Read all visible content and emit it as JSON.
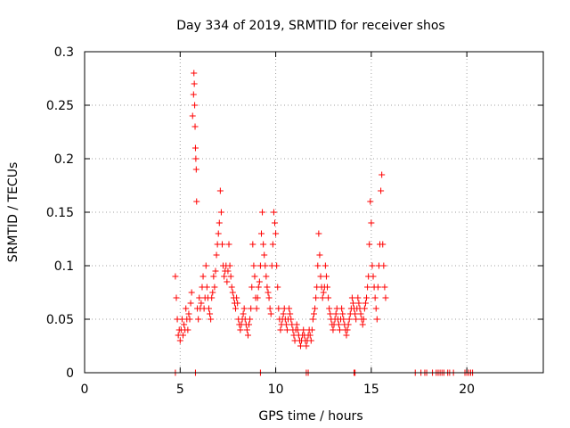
{
  "chart_data": {
    "type": "scatter",
    "title": "Day 334 of 2019, SRMTID for receiver shos",
    "xlabel": "GPS time / hours",
    "ylabel": "SRMTID / TECUs",
    "xlim": [
      0,
      24
    ],
    "ylim": [
      0,
      0.3
    ],
    "xticks": [
      0,
      5,
      10,
      15,
      20
    ],
    "xtick_labels": [
      "0",
      "5",
      "10",
      "15",
      "20"
    ],
    "yticks": [
      0,
      0.05,
      0.1,
      0.15,
      0.2,
      0.25,
      0.3
    ],
    "ytick_labels": [
      "0",
      "0.05",
      "0.1",
      "0.15",
      "0.2",
      "0.25",
      "0.3"
    ],
    "grid": true,
    "marker": "+",
    "color": "#ff0000",
    "series": [
      {
        "name": "SRMTID",
        "x": [
          4.75,
          4.8,
          4.85,
          4.9,
          4.95,
          5.0,
          5.05,
          5.1,
          5.15,
          5.2,
          5.25,
          5.3,
          5.35,
          5.4,
          5.45,
          5.5,
          5.55,
          5.6,
          5.65,
          5.7,
          5.72,
          5.74,
          5.76,
          5.78,
          5.8,
          5.82,
          5.84,
          5.86,
          5.9,
          5.95,
          6.0,
          6.05,
          6.1,
          6.15,
          6.2,
          6.25,
          6.3,
          6.35,
          6.4,
          6.45,
          6.5,
          6.55,
          6.6,
          6.65,
          6.7,
          6.75,
          6.8,
          6.85,
          6.9,
          6.95,
          7.0,
          7.05,
          7.1,
          7.15,
          7.2,
          7.25,
          7.3,
          7.35,
          7.4,
          7.45,
          7.5,
          7.55,
          7.6,
          7.65,
          7.7,
          7.75,
          7.8,
          7.85,
          7.9,
          7.95,
          8.0,
          8.05,
          8.1,
          8.15,
          8.2,
          8.25,
          8.3,
          8.35,
          8.4,
          8.45,
          8.5,
          8.55,
          8.6,
          8.65,
          8.7,
          8.75,
          8.8,
          8.85,
          8.9,
          8.95,
          9.0,
          9.05,
          9.1,
          9.15,
          9.2,
          9.25,
          9.3,
          9.35,
          9.4,
          9.45,
          9.5,
          9.55,
          9.6,
          9.65,
          9.7,
          9.75,
          9.8,
          9.85,
          9.9,
          9.95,
          10.0,
          10.05,
          10.1,
          10.15,
          10.2,
          10.25,
          10.3,
          10.35,
          10.4,
          10.45,
          10.5,
          10.55,
          10.6,
          10.65,
          10.7,
          10.75,
          10.8,
          10.85,
          10.9,
          10.95,
          11.0,
          11.05,
          11.1,
          11.15,
          11.2,
          11.25,
          11.3,
          11.35,
          11.4,
          11.45,
          11.5,
          11.55,
          11.6,
          11.65,
          11.7,
          11.75,
          11.8,
          11.85,
          11.9,
          11.95,
          12.0,
          12.05,
          12.1,
          12.15,
          12.2,
          12.25,
          12.3,
          12.35,
          12.4,
          12.45,
          12.5,
          12.55,
          12.6,
          12.65,
          12.7,
          12.75,
          12.8,
          12.85,
          12.9,
          12.95,
          13.0,
          13.05,
          13.1,
          13.15,
          13.2,
          13.25,
          13.3,
          13.35,
          13.4,
          13.45,
          13.5,
          13.55,
          13.6,
          13.65,
          13.7,
          13.75,
          13.8,
          13.85,
          13.9,
          13.95,
          14.0,
          14.05,
          14.1,
          14.15,
          14.2,
          14.25,
          14.3,
          14.35,
          14.4,
          14.45,
          14.5,
          14.55,
          14.6,
          14.65,
          14.7,
          14.75,
          14.8,
          14.85,
          14.9,
          14.95,
          15.0,
          15.05,
          15.1,
          15.15,
          15.2,
          15.25,
          15.3,
          15.35,
          15.4,
          15.45,
          15.5,
          15.55,
          15.6,
          15.65,
          15.7,
          15.75,
          4.75,
          5.8,
          9.2,
          11.6,
          11.7,
          14.1,
          14.15,
          17.3,
          17.6,
          17.8,
          17.9,
          18.2,
          18.4,
          18.5,
          18.6,
          18.7,
          18.8,
          19.0,
          19.1,
          19.3,
          19.9,
          20.0,
          20.1,
          20.2,
          20.3
        ],
        "y": [
          0.09,
          0.07,
          0.05,
          0.035,
          0.04,
          0.03,
          0.04,
          0.05,
          0.035,
          0.045,
          0.04,
          0.06,
          0.05,
          0.04,
          0.055,
          0.05,
          0.065,
          0.075,
          0.24,
          0.26,
          0.28,
          0.27,
          0.25,
          0.23,
          0.21,
          0.2,
          0.19,
          0.16,
          0.06,
          0.05,
          0.07,
          0.06,
          0.065,
          0.08,
          0.09,
          0.06,
          0.07,
          0.1,
          0.08,
          0.07,
          0.06,
          0.055,
          0.05,
          0.07,
          0.075,
          0.09,
          0.08,
          0.095,
          0.11,
          0.12,
          0.13,
          0.14,
          0.17,
          0.15,
          0.12,
          0.1,
          0.09,
          0.095,
          0.1,
          0.085,
          0.095,
          0.12,
          0.1,
          0.09,
          0.08,
          0.075,
          0.07,
          0.065,
          0.06,
          0.07,
          0.065,
          0.05,
          0.045,
          0.04,
          0.045,
          0.05,
          0.055,
          0.06,
          0.05,
          0.045,
          0.04,
          0.035,
          0.045,
          0.05,
          0.06,
          0.08,
          0.12,
          0.1,
          0.09,
          0.07,
          0.06,
          0.07,
          0.08,
          0.085,
          0.1,
          0.13,
          0.15,
          0.12,
          0.11,
          0.1,
          0.09,
          0.08,
          0.075,
          0.07,
          0.06,
          0.055,
          0.1,
          0.12,
          0.15,
          0.14,
          0.13,
          0.1,
          0.08,
          0.06,
          0.05,
          0.04,
          0.045,
          0.05,
          0.055,
          0.06,
          0.05,
          0.045,
          0.04,
          0.05,
          0.06,
          0.055,
          0.05,
          0.045,
          0.04,
          0.035,
          0.03,
          0.04,
          0.045,
          0.04,
          0.035,
          0.03,
          0.025,
          0.03,
          0.035,
          0.04,
          0.035,
          0.03,
          0.025,
          0.03,
          0.035,
          0.04,
          0.035,
          0.03,
          0.04,
          0.05,
          0.055,
          0.06,
          0.07,
          0.08,
          0.1,
          0.13,
          0.11,
          0.09,
          0.08,
          0.07,
          0.075,
          0.08,
          0.1,
          0.09,
          0.08,
          0.07,
          0.06,
          0.055,
          0.05,
          0.045,
          0.04,
          0.045,
          0.05,
          0.055,
          0.06,
          0.05,
          0.045,
          0.04,
          0.05,
          0.06,
          0.055,
          0.05,
          0.045,
          0.04,
          0.035,
          0.04,
          0.045,
          0.05,
          0.055,
          0.06,
          0.07,
          0.065,
          0.06,
          0.055,
          0.05,
          0.06,
          0.07,
          0.065,
          0.06,
          0.055,
          0.05,
          0.045,
          0.05,
          0.06,
          0.065,
          0.07,
          0.08,
          0.09,
          0.12,
          0.16,
          0.14,
          0.1,
          0.09,
          0.08,
          0.07,
          0.06,
          0.05,
          0.08,
          0.1,
          0.12,
          0.17,
          0.185,
          0.12,
          0.1,
          0.08,
          0.07,
          0,
          0,
          0,
          0,
          0,
          0,
          0,
          0,
          0,
          0,
          0,
          0,
          0,
          0,
          0,
          0,
          0,
          0,
          0,
          0,
          0,
          0,
          0,
          0,
          0
        ]
      }
    ]
  }
}
